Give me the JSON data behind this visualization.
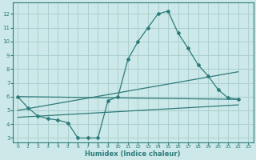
{
  "xlabel": "Humidex (Indice chaleur)",
  "xlim": [
    -0.5,
    23.5
  ],
  "ylim": [
    2.7,
    12.8
  ],
  "yticks": [
    3,
    4,
    5,
    6,
    7,
    8,
    9,
    10,
    11,
    12
  ],
  "xticks": [
    0,
    1,
    2,
    3,
    4,
    5,
    6,
    7,
    8,
    9,
    10,
    11,
    12,
    13,
    14,
    15,
    16,
    17,
    18,
    19,
    20,
    21,
    22,
    23
  ],
  "bg_color": "#cce8e8",
  "grid_color": "#aacfcf",
  "line_color": "#2e7b7b",
  "series": [
    {
      "x": [
        0,
        1,
        2,
        3,
        4,
        5,
        6,
        7,
        8,
        9,
        10,
        11,
        12,
        13,
        14,
        15,
        16,
        17,
        18,
        19,
        20,
        21,
        22
      ],
      "y": [
        6.0,
        5.2,
        4.6,
        4.4,
        4.3,
        4.1,
        3.0,
        3.0,
        3.0,
        5.7,
        6.0,
        8.7,
        10.0,
        11.0,
        12.0,
        12.2,
        10.6,
        9.5,
        8.3,
        7.5,
        6.5,
        5.9,
        5.8
      ]
    },
    {
      "x": [
        0,
        22
      ],
      "y": [
        6.0,
        5.8
      ]
    },
    {
      "x": [
        0,
        22
      ],
      "y": [
        5.0,
        7.8
      ]
    },
    {
      "x": [
        0,
        22
      ],
      "y": [
        4.5,
        5.4
      ]
    }
  ]
}
